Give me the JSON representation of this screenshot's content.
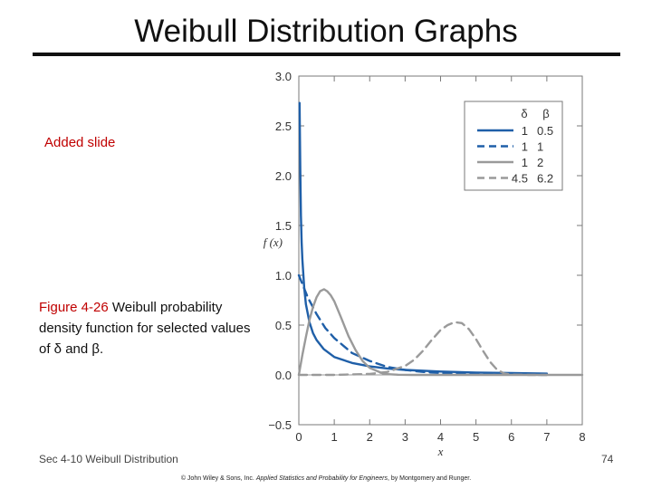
{
  "slide": {
    "title": "Weibull Distribution Graphs",
    "added_note": "Added slide",
    "caption_figure": "Figure 4-26",
    "caption_text": "Weibull probability density function for selected values of δ and β.",
    "footer_left": "Sec 4-10 Weibull Distribution",
    "page_number": "74",
    "copyright_prefix": "© John Wiley & Sons, Inc.",
    "copyright_book": "Applied Statistics and Probability for Engineers",
    "copyright_suffix": ", by Montgomery and Runger."
  },
  "chart_data": {
    "type": "line",
    "xlabel": "x",
    "ylabel": "f (x)",
    "xlim": [
      0,
      8
    ],
    "ylim": [
      -0.5,
      3.0
    ],
    "x_ticks": [
      "0",
      "1",
      "2",
      "3",
      "4",
      "5",
      "6",
      "7",
      "8"
    ],
    "y_ticks": [
      "−0.5",
      "0.0",
      "0.5",
      "1.0",
      "1.5",
      "2.0",
      "2.5",
      "3.0"
    ],
    "grid": false,
    "legend_position": "top-right",
    "legend_headers": [
      "δ",
      "β"
    ],
    "series": [
      {
        "delta": "1",
        "beta": "0.5",
        "color": "#1f5fa8",
        "dash": "solid",
        "x": [
          0.02,
          0.04,
          0.06,
          0.08,
          0.1,
          0.15,
          0.2,
          0.3,
          0.4,
          0.5,
          0.7,
          1.0,
          1.5,
          2.0,
          2.5,
          3.0,
          4.0,
          5.0,
          6.0,
          7.0
        ],
        "y": [
          2.73,
          2.06,
          1.6,
          1.33,
          1.16,
          0.88,
          0.71,
          0.53,
          0.42,
          0.35,
          0.26,
          0.18,
          0.12,
          0.085,
          0.065,
          0.05,
          0.034,
          0.024,
          0.018,
          0.013
        ]
      },
      {
        "delta": "1",
        "beta": "1",
        "color": "#1f5fa8",
        "dash": "dashed",
        "x": [
          0,
          0.25,
          0.5,
          0.75,
          1.0,
          1.5,
          2.0,
          2.5,
          3.0,
          3.5,
          4.0,
          5.0,
          6.0,
          7.0
        ],
        "y": [
          1.0,
          0.78,
          0.61,
          0.47,
          0.37,
          0.22,
          0.14,
          0.08,
          0.05,
          0.03,
          0.018,
          0.007,
          0.002,
          0.001
        ]
      },
      {
        "delta": "1",
        "beta": "2",
        "color": "#9a9a9a",
        "dash": "solid",
        "x": [
          0,
          0.1,
          0.2,
          0.3,
          0.4,
          0.5,
          0.6,
          0.71,
          0.8,
          0.9,
          1.0,
          1.2,
          1.4,
          1.6,
          1.8,
          2.0,
          2.4,
          2.8,
          3.2,
          4.0,
          5.0,
          6.0,
          7.0,
          8.0
        ],
        "y": [
          0,
          0.2,
          0.38,
          0.55,
          0.68,
          0.78,
          0.84,
          0.86,
          0.84,
          0.8,
          0.74,
          0.57,
          0.39,
          0.25,
          0.14,
          0.07,
          0.01,
          0.002,
          0,
          0,
          0,
          0,
          0,
          0
        ]
      },
      {
        "delta": "4.5",
        "beta": "6.2",
        "color": "#9a9a9a",
        "dash": "dashed",
        "x": [
          0,
          1.0,
          2.0,
          2.5,
          3.0,
          3.25,
          3.5,
          3.75,
          4.0,
          4.2,
          4.4,
          4.6,
          4.8,
          5.0,
          5.2,
          5.4,
          5.6,
          5.8,
          6.0,
          6.5,
          7.0
        ],
        "y": [
          0,
          0.0,
          0.01,
          0.03,
          0.09,
          0.15,
          0.24,
          0.35,
          0.45,
          0.5,
          0.53,
          0.52,
          0.46,
          0.36,
          0.24,
          0.13,
          0.05,
          0.015,
          0.004,
          0,
          0
        ]
      }
    ]
  }
}
